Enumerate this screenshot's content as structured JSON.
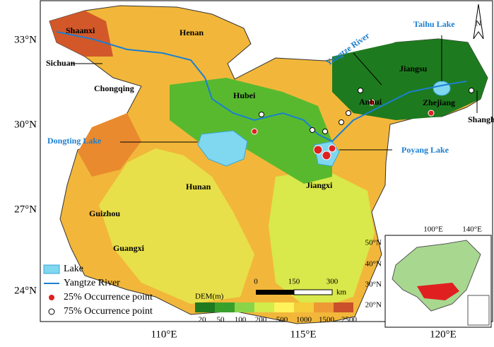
{
  "axes": {
    "lat_labels": [
      "33°N",
      "30°N",
      "27°N",
      "24°N"
    ],
    "lon_labels": [
      "110°E",
      "115°E",
      "120°E"
    ]
  },
  "north": "N",
  "provinces": [
    "Shaanxi",
    "Henan",
    "Sichuan",
    "Chongqing",
    "Hubei",
    "Anhui",
    "Jiangsu",
    "Zhejiang",
    "Shanghai",
    "Hunan",
    "Jiangxi",
    "Guizhou",
    "Guangxi"
  ],
  "water": [
    "Taihu Lake",
    "Yangtze River",
    "Dongting Lake",
    "Poyang Lake"
  ],
  "legend": [
    "Lake",
    "Yangtze River",
    "25% Occurrence point",
    "75% Occurrence point"
  ],
  "dem": {
    "title": "DEM(m)",
    "ticks": [
      "20",
      "50",
      "100",
      "200",
      "500",
      "1000",
      "1500",
      "2500"
    ]
  },
  "scale": {
    "ticks": [
      "0",
      "150",
      "300"
    ],
    "unit": "km"
  },
  "inset": {
    "lat_labels": [
      "50°N",
      "40°N",
      "30°N",
      "20°N"
    ],
    "lon_labels": [
      "100°E",
      "140°E"
    ]
  }
}
